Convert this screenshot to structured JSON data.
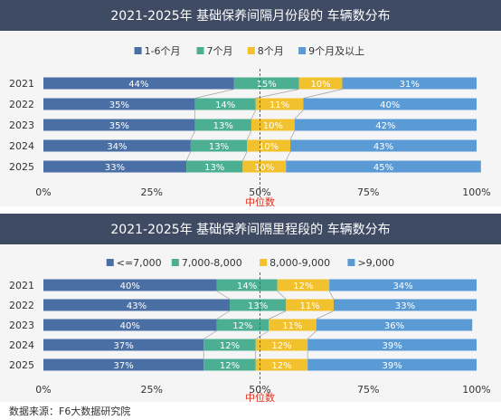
{
  "chart_data": [
    {
      "type": "bar",
      "stacked": true,
      "orientation": "horizontal",
      "title": "2021-2025年 基础保养间隔月份段的 车辆数分布",
      "categories": [
        "2021",
        "2022",
        "2023",
        "2024",
        "2025"
      ],
      "series": [
        {
          "name": "1-6个月",
          "values": [
            44,
            35,
            35,
            34,
            33
          ]
        },
        {
          "name": "7个月",
          "values": [
            15,
            14,
            13,
            13,
            13
          ]
        },
        {
          "name": "8个月",
          "values": [
            10,
            11,
            10,
            10,
            10
          ]
        },
        {
          "name": "9个月及以上",
          "values": [
            31,
            40,
            42,
            43,
            45
          ]
        }
      ],
      "value_labels": [
        [
          "44%",
          "35%",
          "35%",
          "34%",
          "33%"
        ],
        [
          "15%",
          "14%",
          "13%",
          "13%",
          "13%"
        ],
        [
          "10%",
          "11%",
          "10%",
          "10%",
          "10%"
        ],
        [
          "31%",
          "40%",
          "42%",
          "43%",
          "45%"
        ]
      ],
      "xlim": [
        0,
        100
      ],
      "xticks": [
        "0%",
        "25%",
        "50%",
        "75%",
        "100%"
      ],
      "median_line": {
        "value": 50,
        "label": "中位数"
      },
      "legend_position": "top",
      "grid": false
    },
    {
      "type": "bar",
      "stacked": true,
      "orientation": "horizontal",
      "title": "2021-2025年 基础保养间隔里程段的 车辆数分布",
      "categories": [
        "2021",
        "2022",
        "2023",
        "2024",
        "2025"
      ],
      "series": [
        {
          "name": "<=7,000",
          "values": [
            40,
            43,
            40,
            37,
            37
          ]
        },
        {
          "name": "7,000-8,000",
          "values": [
            14,
            13,
            12,
            12,
            12
          ]
        },
        {
          "name": "8,000-9,000",
          "values": [
            12,
            11,
            11,
            12,
            12
          ]
        },
        {
          "name": ">9,000",
          "values": [
            34,
            33,
            36,
            39,
            39
          ]
        }
      ],
      "value_labels": [
        [
          "40%",
          "43%",
          "40%",
          "37%",
          "37%"
        ],
        [
          "14%",
          "13%",
          "12%",
          "12%",
          "12%"
        ],
        [
          "12%",
          "11%",
          "11%",
          "12%",
          "12%"
        ],
        [
          "34%",
          "33%",
          "36%",
          "39%",
          "39%"
        ]
      ],
      "xlim": [
        0,
        100
      ],
      "xticks": [
        "0%",
        "25%",
        "50%",
        "75%",
        "100%"
      ],
      "median_line": {
        "value": 50,
        "label": "中位数"
      },
      "legend_position": "top",
      "grid": false
    }
  ],
  "colors": {
    "series": [
      "#4a6fa5",
      "#4daf91",
      "#f2c12e",
      "#5b9bd5"
    ],
    "median": "#e0301e",
    "title_bg": "#3f4b63"
  },
  "footer": {
    "source": "数据来源：F6大数据研究院"
  }
}
